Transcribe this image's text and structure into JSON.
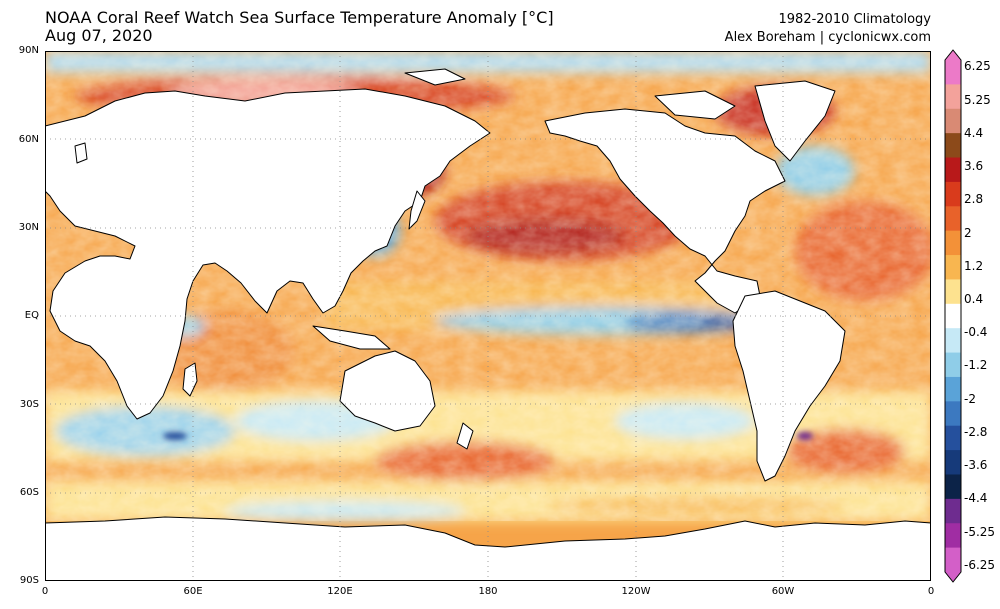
{
  "header": {
    "title_line1": "NOAA Coral Reef Watch Sea Surface Temperature Anomaly [°C]",
    "title_line2": "Aug 07, 2020",
    "climatology": "1982-2010 Climatology",
    "credit": "Alex Boreham | cyclonicwx.com"
  },
  "map": {
    "projection": "equirectangular",
    "lat_labels": [
      "90N",
      "60N",
      "30N",
      "EQ",
      "30S",
      "60S",
      "90S"
    ],
    "lon_labels": [
      "0",
      "60E",
      "120E",
      "180",
      "120W",
      "60W",
      "0"
    ],
    "land_color": "#ffffff",
    "coast_color": "#000000",
    "gridlines": "dotted",
    "features": [
      {
        "name": "tropical-pacific-cool-tongue",
        "anomaly": "-2"
      },
      {
        "name": "north-pacific-warm-blob",
        "anomaly": "+3"
      },
      {
        "name": "arctic-siberian-warm-anomaly",
        "anomaly": "+4.4"
      },
      {
        "name": "southern-ocean-mixed-band",
        "anomaly": "-1 to +1.5"
      }
    ]
  },
  "colorbar": {
    "labels": [
      "6.25",
      "5.25",
      "4.4",
      "3.6",
      "2.8",
      "2",
      "1.2",
      "0.4",
      "-0.4",
      "-1.2",
      "-2",
      "-2.8",
      "-3.6",
      "-4.4",
      "-5.25",
      "-6.25"
    ],
    "colors": [
      "#ec7ac8",
      "#f3a29b",
      "#d98a74",
      "#8c4a1a",
      "#b8191a",
      "#d93b1c",
      "#e8622a",
      "#f39138",
      "#f8b650",
      "#fde28f",
      "#ffffff",
      "#c6e9f6",
      "#8fcde8",
      "#5aa3d8",
      "#3c79c0",
      "#25509d",
      "#163a7a",
      "#0c2348",
      "#6e2c8f",
      "#a02da3",
      "#d35fc8"
    ],
    "units": "°C"
  }
}
